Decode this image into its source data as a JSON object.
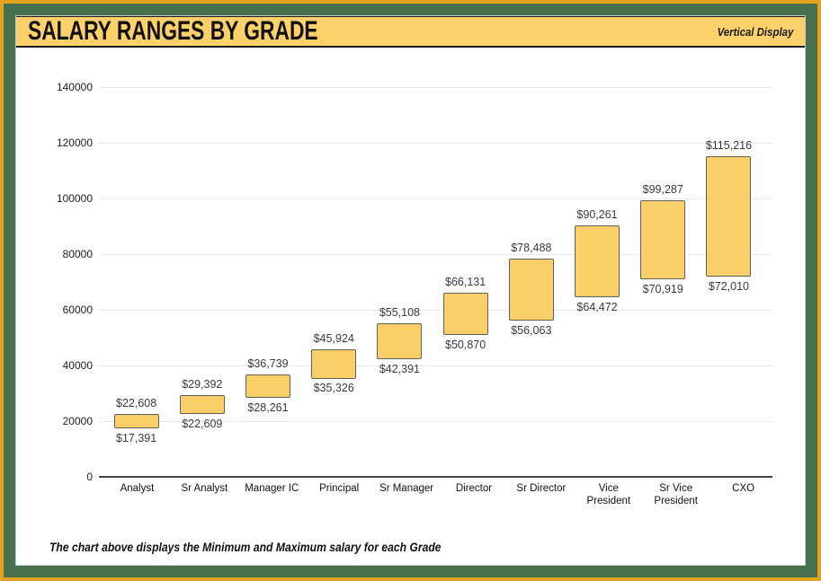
{
  "header": {
    "title": "SALARY RANGES BY GRADE",
    "subtitle": "Vertical Display"
  },
  "footnote": "The chart above displays the Minimum and Maximum salary for each Grade",
  "chart_data": {
    "type": "bar",
    "subtype": "floating-range-column",
    "title": "SALARY RANGES BY GRADE",
    "xlabel": "",
    "ylabel": "",
    "categories": [
      "Analyst",
      "Sr Analyst",
      "Manager IC",
      "Principal",
      "Sr Manager",
      "Director",
      "Sr Director",
      "Vice President",
      "Sr Vice President",
      "CXO"
    ],
    "series": [
      {
        "name": "Minimum",
        "values": [
          17391,
          22609,
          28261,
          35326,
          42391,
          50870,
          56063,
          64472,
          70919,
          72010
        ]
      },
      {
        "name": "Maximum",
        "values": [
          22608,
          29392,
          36739,
          45924,
          55108,
          66131,
          78488,
          90261,
          99287,
          115216
        ]
      }
    ],
    "min_labels": [
      "$17,391",
      "$22,609",
      "$28,261",
      "$35,326",
      "$42,391",
      "$50,870",
      "$56,063",
      "$64,472",
      "$70,919",
      "$72,010"
    ],
    "max_labels": [
      "$22,608",
      "$29,392",
      "$36,739",
      "$45,924",
      "$55,108",
      "$66,131",
      "$78,488",
      "$90,261",
      "$99,287",
      "$115,216"
    ],
    "ylim": [
      0,
      140000
    ],
    "yticks": [
      0,
      20000,
      40000,
      60000,
      80000,
      100000,
      120000,
      140000
    ],
    "ytick_labels": [
      "0",
      "20000",
      "40000",
      "60000",
      "80000",
      "100000",
      "120000",
      "140000"
    ],
    "grid": true,
    "legend": "none",
    "colors": {
      "bar_fill": "#FBCF67",
      "bar_border": "#5E5E5E",
      "gridline": "#E8E8E8",
      "axis_line": "#424242",
      "header_band": "#FCD169",
      "frame_green": "#47704D",
      "frame_gold": "#E4A21F",
      "value_label_text": "#3A3A3A"
    }
  }
}
